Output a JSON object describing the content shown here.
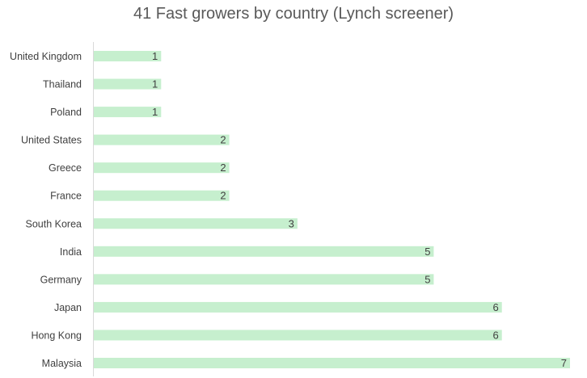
{
  "chart_data": {
    "type": "bar",
    "orientation": "horizontal",
    "title": "41 Fast growers by country (Lynch screener)",
    "xlabel": "",
    "ylabel": "",
    "categories": [
      "United Kingdom",
      "Thailand",
      "Poland",
      "United States",
      "Greece",
      "France",
      "South Korea",
      "India",
      "Germany",
      "Japan",
      "Hong Kong",
      "Malaysia"
    ],
    "values": [
      1,
      1,
      1,
      2,
      2,
      2,
      3,
      5,
      5,
      6,
      6,
      7
    ],
    "xlim": [
      0,
      7
    ],
    "grid": false,
    "legend": "none",
    "data_labels": true,
    "bar_color": "#c6efce",
    "axis_line_color": "#d9d9d9",
    "text_color": "#404040",
    "title_color": "#595959"
  }
}
